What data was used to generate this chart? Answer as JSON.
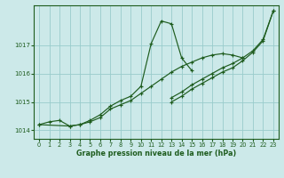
{
  "xlabel": "Graphe pression niveau de la mer (hPa)",
  "xlim": [
    -0.5,
    23.5
  ],
  "ylim": [
    1013.7,
    1018.4
  ],
  "yticks": [
    1014,
    1015,
    1016,
    1017
  ],
  "xticks": [
    0,
    1,
    2,
    3,
    4,
    5,
    6,
    7,
    8,
    9,
    10,
    11,
    12,
    13,
    14,
    15,
    16,
    17,
    18,
    19,
    20,
    21,
    22,
    23
  ],
  "background_color": "#cce9e9",
  "grid_color": "#99cccc",
  "line_color": "#1e5c1e",
  "series": [
    [
      1014.2,
      1014.3,
      1014.35,
      1014.15,
      1014.2,
      1014.3,
      1014.45,
      1014.75,
      1014.9,
      1015.05,
      1015.3,
      1015.55,
      1015.8,
      1016.05,
      1016.25,
      1016.4,
      1016.55,
      1016.65,
      1016.7,
      1016.65,
      1016.55,
      null,
      null,
      null
    ],
    [
      1014.2,
      null,
      null,
      1014.15,
      1014.2,
      1014.35,
      1014.55,
      1014.85,
      1015.05,
      1015.2,
      1015.55,
      1017.05,
      1017.85,
      1017.75,
      1016.55,
      1016.1,
      null,
      null,
      null,
      null,
      null,
      null,
      null,
      null
    ],
    [
      null,
      null,
      null,
      null,
      null,
      null,
      null,
      null,
      null,
      null,
      null,
      null,
      null,
      1015.0,
      1015.2,
      1015.45,
      1015.65,
      1015.85,
      1016.05,
      1016.2,
      1016.45,
      1016.75,
      1017.15,
      1018.2
    ],
    [
      null,
      null,
      null,
      null,
      null,
      null,
      null,
      null,
      null,
      null,
      null,
      null,
      null,
      1015.15,
      1015.35,
      1015.6,
      1015.8,
      1016.0,
      1016.2,
      1016.35,
      1016.55,
      1016.8,
      1017.2,
      1018.2
    ]
  ]
}
